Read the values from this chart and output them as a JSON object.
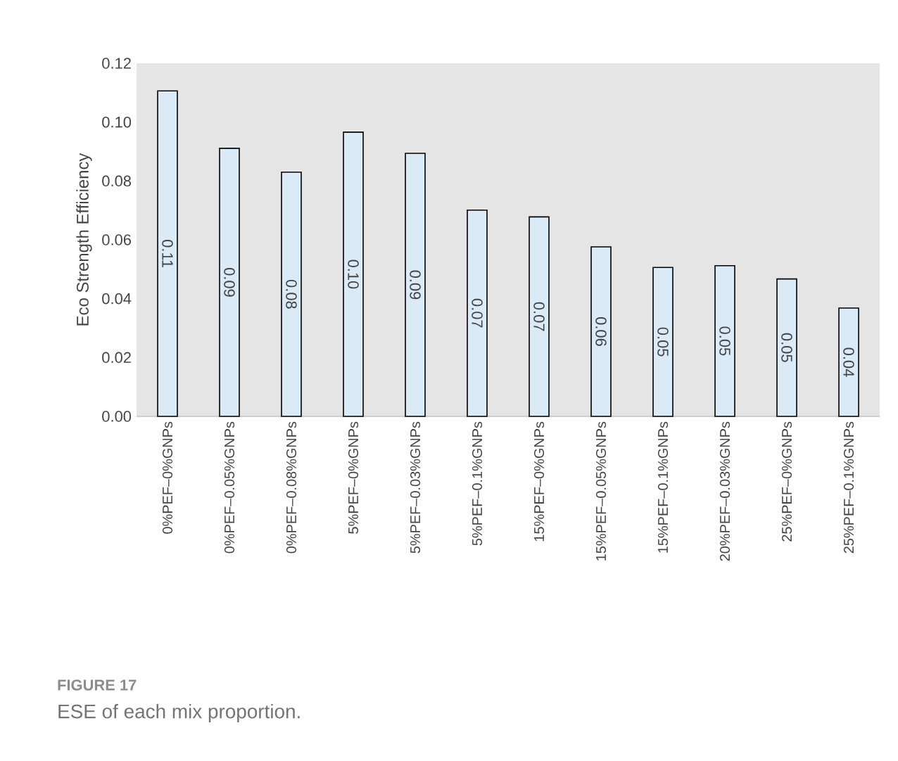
{
  "chart_data": {
    "type": "bar",
    "ylabel": "Eco Strength Efficiency",
    "categories": [
      "0%PEF–0%GNPs",
      "0%PEF–0.05%GNPs",
      "0%PEF–0.08%GNPs",
      "5%PEF–0%GNPs",
      "5%PEF–0.03%GNPs",
      "5%PEF–0.1%GNPs",
      "15%PEF–0%GNPs",
      "15%PEF–0.05%GNPs",
      "15%PEF–0.1%GNPs",
      "20%PEF–0.03%GNPs",
      "25%PEF–0%GNPs",
      "25%PEF–0.1%GNPs"
    ],
    "values": [
      0.1106,
      0.0911,
      0.083,
      0.0966,
      0.0894,
      0.0701,
      0.0678,
      0.0576,
      0.0506,
      0.0512,
      0.0467,
      0.0368
    ],
    "value_labels": [
      "0.11",
      "0.09",
      "0.08",
      "0.10",
      "0.09",
      "0.07",
      "0.07",
      "0.06",
      "0.05",
      "0.05",
      "0.05",
      "0.04"
    ],
    "color": "#daeaf7",
    "ylim": [
      0,
      0.12
    ],
    "yticks": [
      {
        "value": 0,
        "label": "0.00"
      },
      {
        "value": 0.02,
        "label": "0.02"
      },
      {
        "value": 0.04,
        "label": "0.04"
      },
      {
        "value": 0.06,
        "label": "0.06"
      },
      {
        "value": 0.08,
        "label": "0.08"
      },
      {
        "value": 0.1,
        "label": "0.10"
      },
      {
        "value": 0.12,
        "label": "0.12"
      }
    ],
    "grid": false,
    "annotations": [
      "**FIGURE 17**",
      "ESE of each mix proportion."
    ]
  }
}
